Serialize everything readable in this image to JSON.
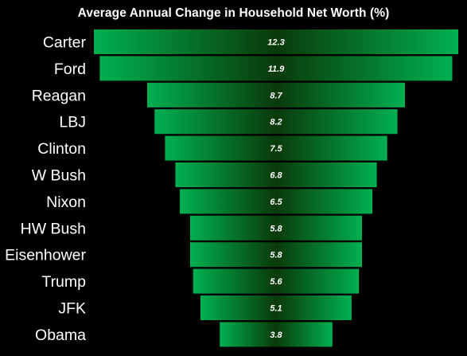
{
  "colors": {
    "background": "#000000",
    "bar_edge": "#00b050",
    "bar_center": "#0a3a0a",
    "text": "#ffffff"
  },
  "chart_data": {
    "type": "bar",
    "orientation": "horizontal",
    "style": "centered-funnel",
    "title": "Average Annual Change in Household Net Worth (%)",
    "xlabel": "",
    "ylabel": "",
    "categories": [
      "Carter",
      "Ford",
      "Reagan",
      "LBJ",
      "Clinton",
      "W Bush",
      "Nixon",
      "HW Bush",
      "Eisenhower",
      "Trump",
      "JFK",
      "Obama"
    ],
    "values": [
      12.3,
      11.9,
      8.7,
      8.2,
      7.5,
      6.8,
      6.5,
      5.8,
      5.8,
      5.6,
      5.1,
      3.8
    ],
    "data_labels": [
      "12.3",
      "11.9",
      "8.7",
      "8.2",
      "7.5",
      "6.8",
      "6.5",
      "5.8",
      "5.8",
      "5.6",
      "5.1",
      "3.8"
    ],
    "grid": false,
    "legend": "none"
  }
}
